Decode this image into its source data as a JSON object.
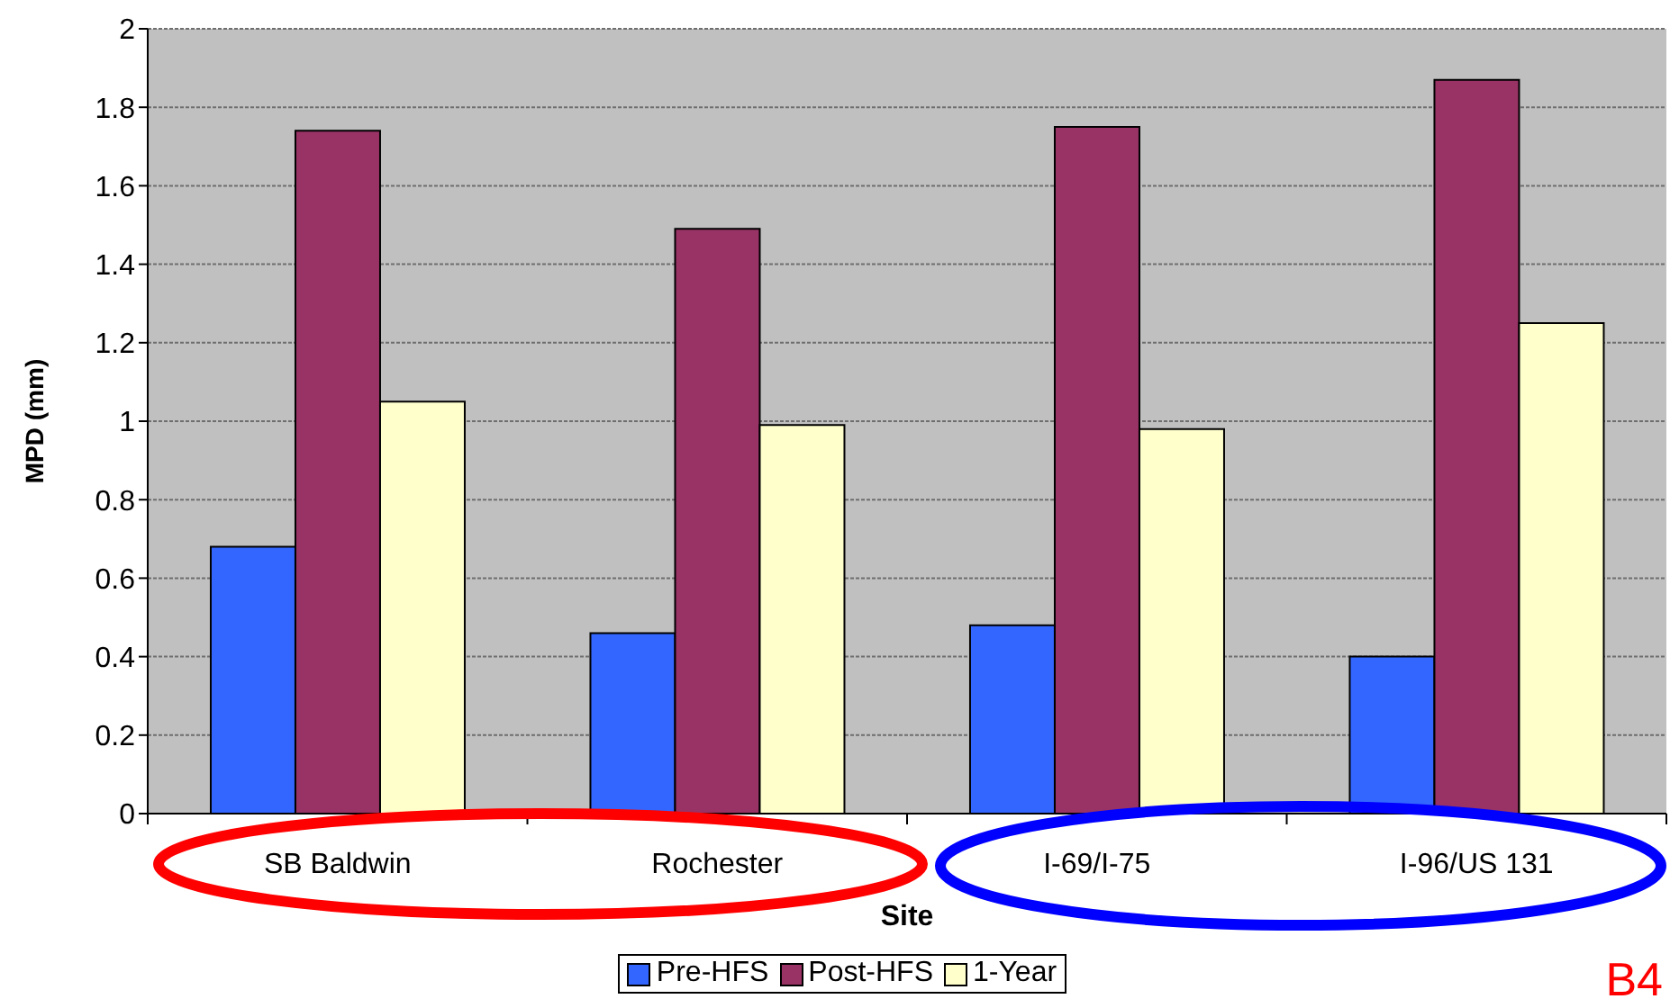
{
  "chart_data": {
    "type": "bar",
    "xlabel": "Site",
    "ylabel": "MPD (mm)",
    "categories": [
      "SB Baldwin",
      "Rochester",
      "I-69/I-75",
      "I-96/US 131"
    ],
    "series": [
      {
        "name": "Pre-HFS",
        "color": "#3366ff",
        "values": [
          0.68,
          0.46,
          0.48,
          0.4
        ]
      },
      {
        "name": "Post-HFS",
        "color": "#993366",
        "values": [
          1.74,
          1.49,
          1.75,
          1.87
        ]
      },
      {
        "name": "1-Year",
        "color": "#ffffcc",
        "values": [
          1.05,
          0.99,
          0.98,
          1.25
        ]
      }
    ],
    "ylim": [
      0,
      2
    ],
    "yticks": [
      0,
      0.2,
      0.4,
      0.6,
      0.8,
      1,
      1.2,
      1.4,
      1.6,
      1.8,
      2
    ],
    "grid": "y",
    "legend": "bottom",
    "annotations": [
      "B4"
    ]
  }
}
